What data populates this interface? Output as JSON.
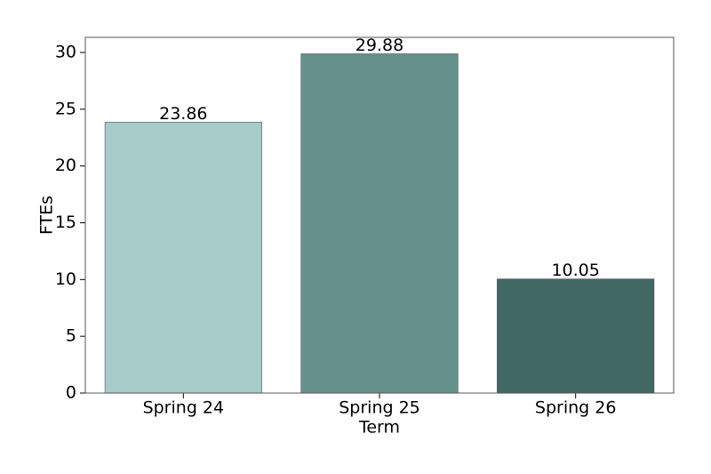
{
  "chart_data": {
    "type": "bar",
    "x_label": "Term",
    "y_label": "FTEs",
    "categories": [
      "Spring 24",
      "Spring 25",
      "Spring 26"
    ],
    "values": [
      23.86,
      29.88,
      10.05
    ],
    "colors": [
      "#a6cbc8",
      "#65908b",
      "#426864"
    ],
    "ylim": [
      0,
      31.33
    ],
    "yticks": [
      0,
      5,
      10,
      15,
      20,
      25,
      30
    ]
  }
}
